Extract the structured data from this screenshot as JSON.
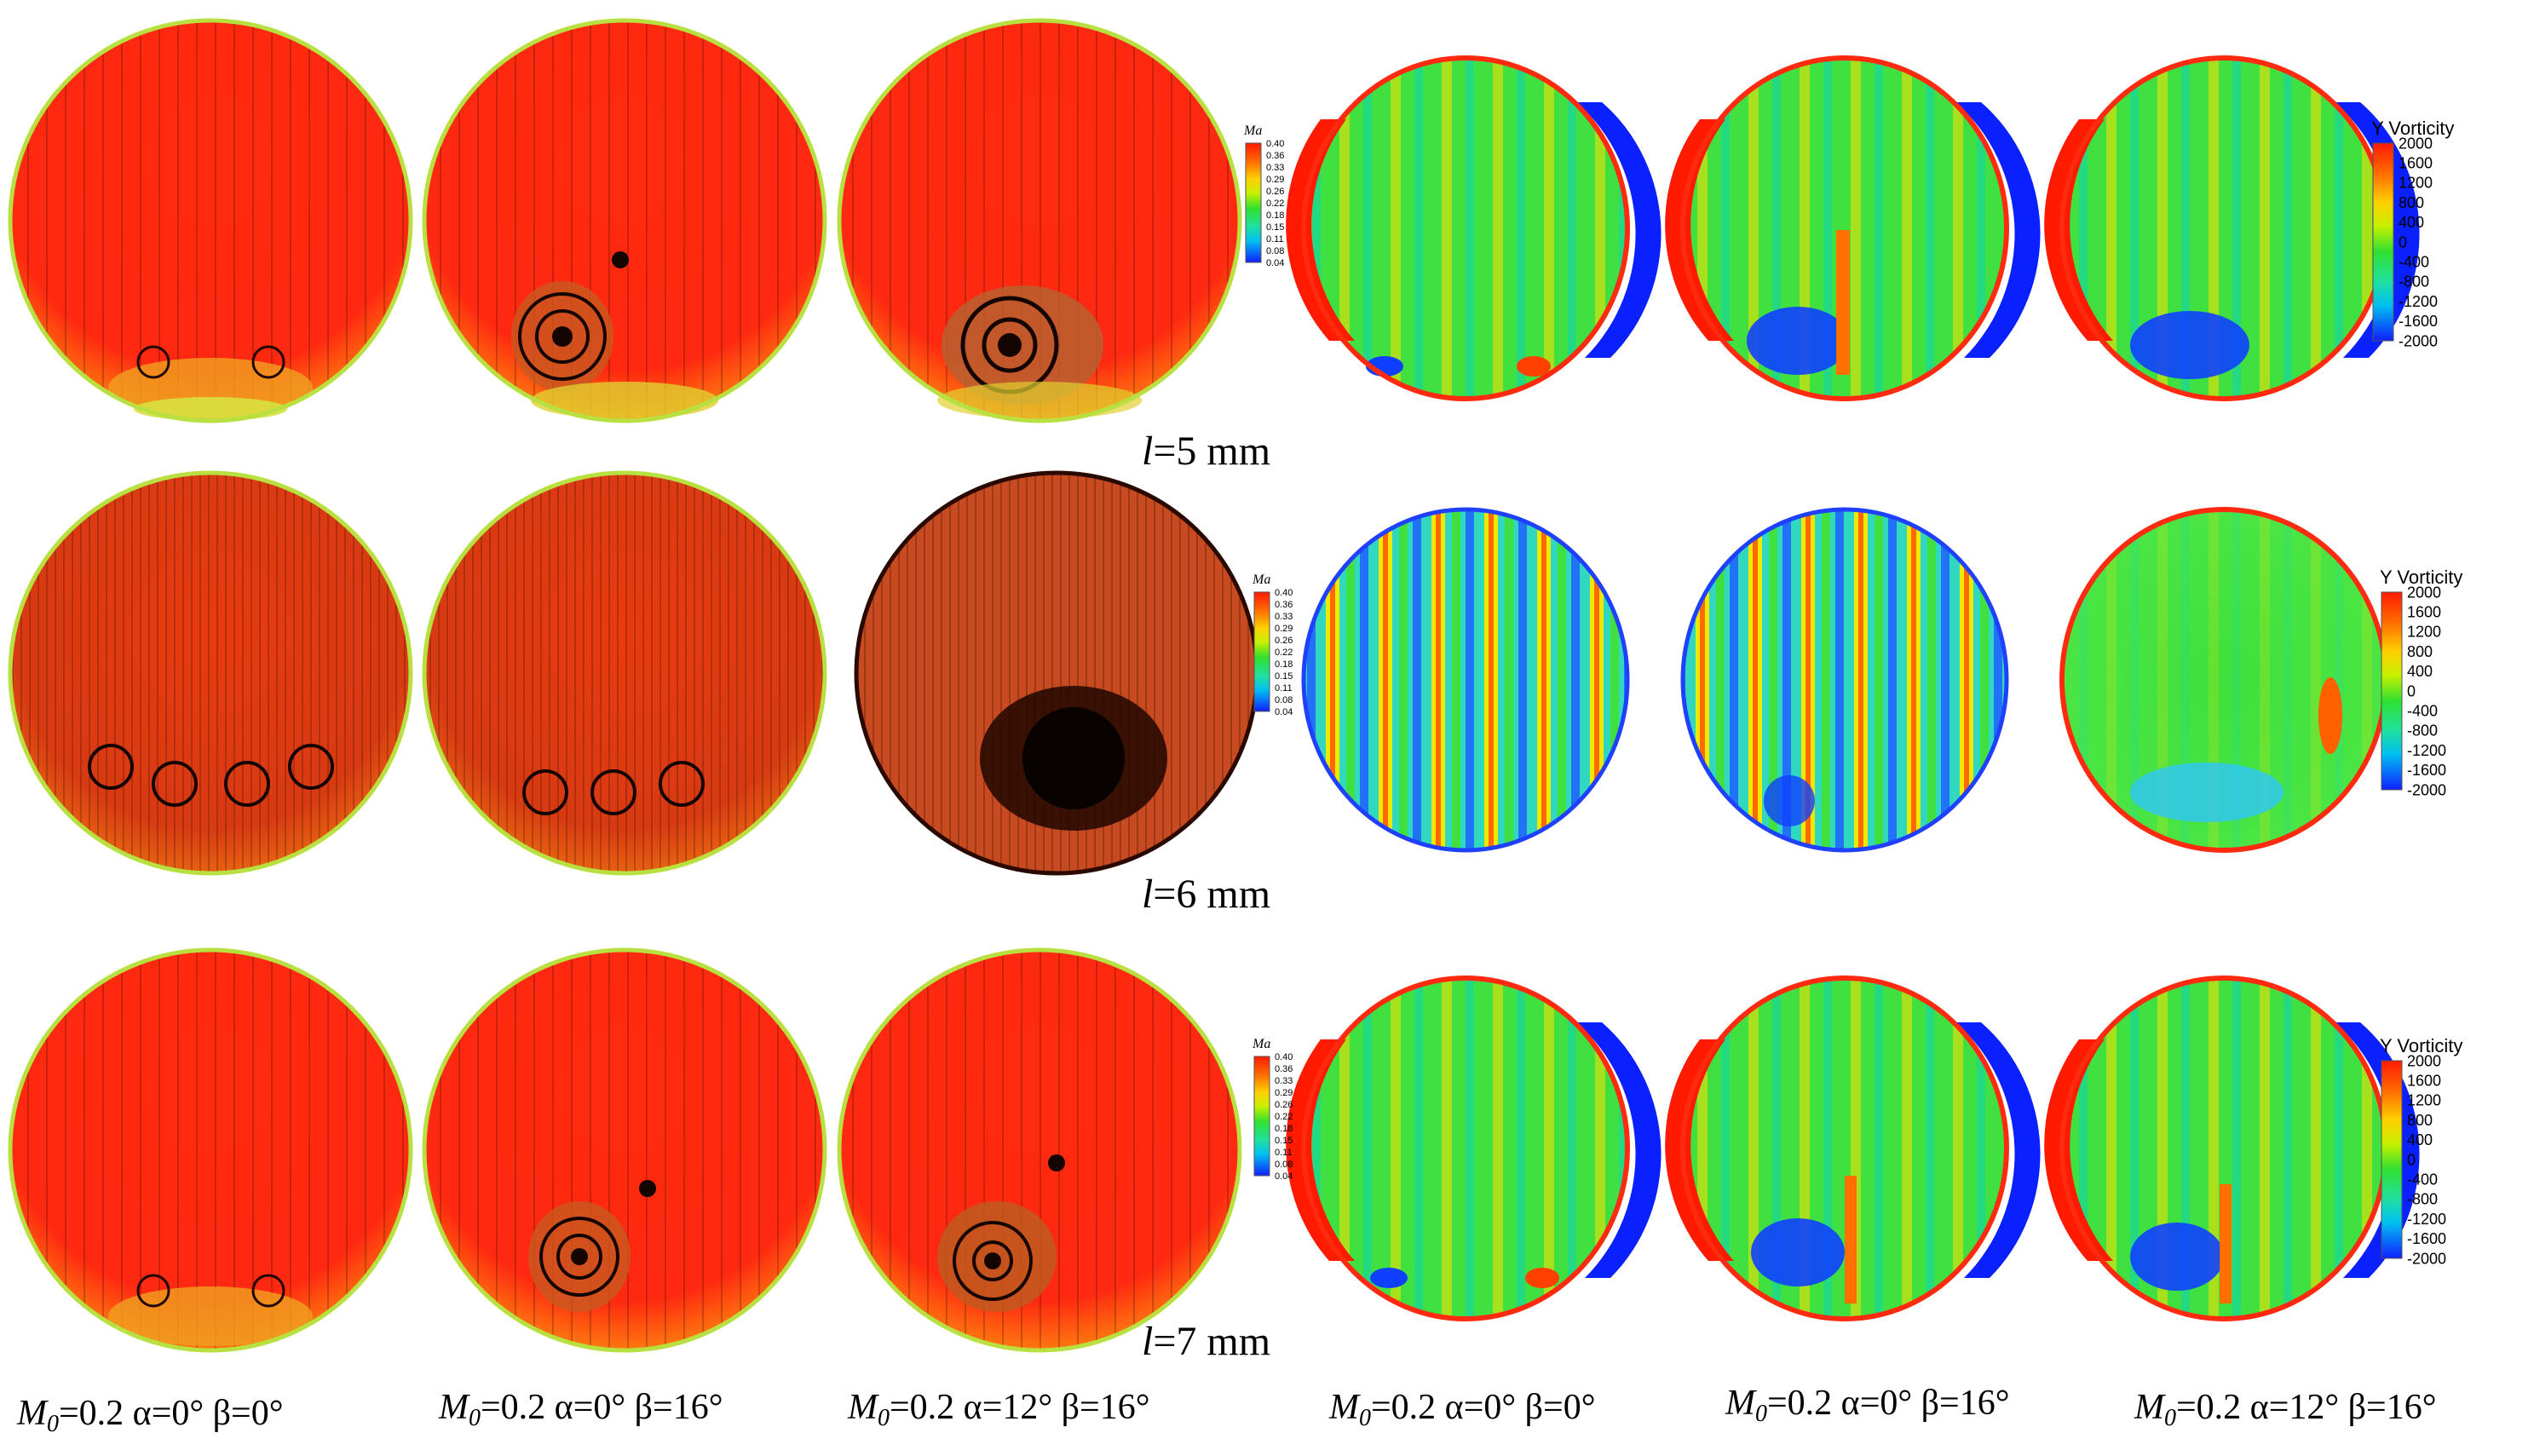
{
  "figure": {
    "row_labels": [
      {
        "var": "l",
        "text": "=5 mm"
      },
      {
        "var": "l",
        "text": "=6 mm"
      },
      {
        "var": "l",
        "text": "=7 mm"
      }
    ],
    "column_labels": [
      {
        "M": "M",
        "sub": "0",
        "rest": "=0.2 α=0°   β=0°"
      },
      {
        "M": "M",
        "sub": "0",
        "rest": "=0.2 α=0°   β=16°"
      },
      {
        "M": "M",
        "sub": "0",
        "rest": "=0.2 α=12°   β=16°"
      },
      {
        "M": "M",
        "sub": "0",
        "rest": "=0.2 α=0°   β=0°"
      },
      {
        "M": "M",
        "sub": "0",
        "rest": "=0.2 α=0°   β=16°"
      },
      {
        "M": "M",
        "sub": "0",
        "rest": "=0.2 α=12°   β=16°"
      }
    ],
    "mach_legend": {
      "title": "Ma",
      "ticks": [
        "0.40",
        "0.36",
        "0.33",
        "0.29",
        "0.26",
        "0.22",
        "0.18",
        "0.15",
        "0.11",
        "0.08",
        "0.04"
      ]
    },
    "vorticity_legend": {
      "title": "Y Vorticity",
      "ticks": [
        "2000",
        "1600",
        "1200",
        "800",
        "400",
        "0",
        "-400",
        "-800",
        "-1200",
        "-1600",
        "-2000"
      ]
    },
    "colors": {
      "red": "#ff2a10",
      "orange": "#ff8c00",
      "yellow": "#f2f000",
      "green": "#35e33a",
      "cyan": "#00c8e8",
      "blue": "#0a20ff",
      "dark_red": "#d02008"
    }
  }
}
